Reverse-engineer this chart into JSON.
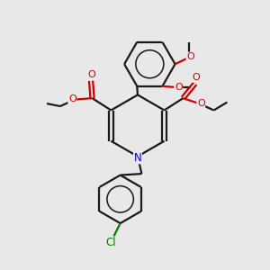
{
  "background_color": "#e8e8e8",
  "bond_color": "#1a1a1a",
  "oxygen_color": "#cc0000",
  "nitrogen_color": "#0000cc",
  "chlorine_color": "#008000",
  "line_width": 1.6,
  "figsize": [
    3.0,
    3.0
  ],
  "dpi": 100,
  "xlim": [
    0,
    10
  ],
  "ylim": [
    0,
    10
  ]
}
